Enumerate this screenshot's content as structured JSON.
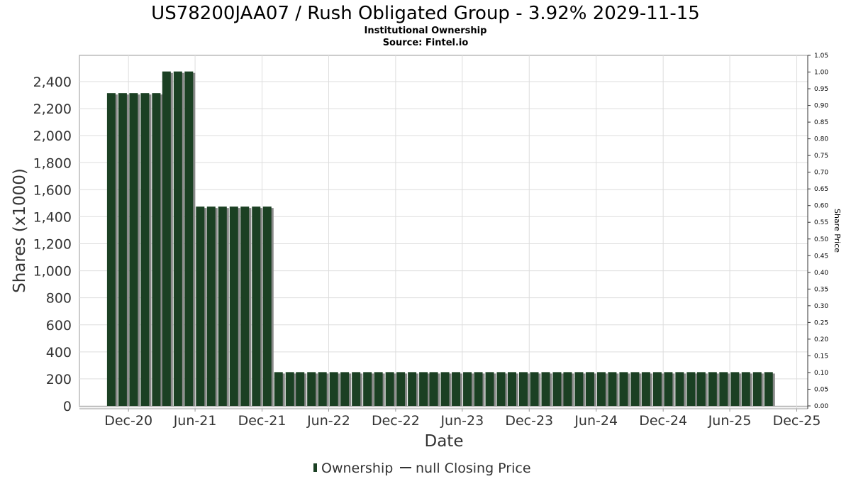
{
  "title": "US78200JAA07 / Rush Obligated Group - 3.92% 2029-11-15",
  "subtitle": "Institutional Ownership",
  "source": "Source: Fintel.io",
  "legend": {
    "ownership_label": "Ownership",
    "price_label": "null Closing Price"
  },
  "colors": {
    "bar": "#1b4023",
    "bar_shadow": "#8a8a8a",
    "grid": "#dddddd",
    "plot_border": "#999999"
  },
  "chart_data": {
    "type": "bar",
    "xlabel": "Date",
    "ylabel": "Shares (x1000)",
    "y2label": "Share Price",
    "ylim": [
      0,
      2600
    ],
    "y2lim": [
      0,
      1.05
    ],
    "yticks": [
      0,
      200,
      400,
      600,
      800,
      1000,
      1200,
      1400,
      1600,
      1800,
      2000,
      2200,
      2400
    ],
    "ytick_labels": [
      "0",
      "200",
      "400",
      "600",
      "800",
      "1,000",
      "1,200",
      "1,400",
      "1,600",
      "1,800",
      "2,000",
      "2,200",
      "2,400"
    ],
    "y2ticks": [
      0.0,
      0.05,
      0.1,
      0.15,
      0.2,
      0.25,
      0.3,
      0.35,
      0.4,
      0.45,
      0.5,
      0.55,
      0.6,
      0.65,
      0.7,
      0.75,
      0.8,
      0.85,
      0.9,
      0.95,
      1.0,
      1.05
    ],
    "y2tick_labels": [
      "0.00",
      "0.05",
      "0.10",
      "0.15",
      "0.20",
      "0.25",
      "0.30",
      "0.35",
      "0.40",
      "0.45",
      "0.50",
      "0.55",
      "0.60",
      "0.65",
      "0.70",
      "0.75",
      "0.80",
      "0.85",
      "0.90",
      "0.95",
      "1.00",
      "1.05"
    ],
    "xlim": [
      "2020-07-20",
      "2025-12-31"
    ],
    "xticks": [
      "2020-12-01",
      "2021-06-01",
      "2021-12-01",
      "2022-06-01",
      "2022-12-01",
      "2023-06-01",
      "2023-12-01",
      "2024-06-01",
      "2024-12-01",
      "2025-06-01",
      "2025-12-01"
    ],
    "xtick_labels": [
      "Dec-20",
      "Jun-21",
      "Dec-21",
      "Jun-22",
      "Dec-22",
      "Jun-23",
      "Dec-23",
      "Jun-24",
      "Dec-24",
      "Jun-25",
      "Dec-25"
    ],
    "grid": true,
    "legend_position": "bottom",
    "series": [
      {
        "name": "Ownership",
        "points": [
          {
            "date": "2020-10-15",
            "value": 2315
          },
          {
            "date": "2020-11-15",
            "value": 2315
          },
          {
            "date": "2020-12-15",
            "value": 2315
          },
          {
            "date": "2021-01-15",
            "value": 2315
          },
          {
            "date": "2021-02-15",
            "value": 2315
          },
          {
            "date": "2021-03-15",
            "value": 2475
          },
          {
            "date": "2021-04-15",
            "value": 2475
          },
          {
            "date": "2021-05-15",
            "value": 2475
          },
          {
            "date": "2021-06-15",
            "value": 1475
          },
          {
            "date": "2021-07-15",
            "value": 1475
          },
          {
            "date": "2021-08-15",
            "value": 1475
          },
          {
            "date": "2021-09-15",
            "value": 1475
          },
          {
            "date": "2021-10-15",
            "value": 1475
          },
          {
            "date": "2021-11-15",
            "value": 1475
          },
          {
            "date": "2021-12-15",
            "value": 1475
          },
          {
            "date": "2022-01-15",
            "value": 250
          },
          {
            "date": "2022-02-15",
            "value": 250
          },
          {
            "date": "2022-03-15",
            "value": 250
          },
          {
            "date": "2022-04-15",
            "value": 250
          },
          {
            "date": "2022-05-15",
            "value": 250
          },
          {
            "date": "2022-06-15",
            "value": 250
          },
          {
            "date": "2022-07-15",
            "value": 250
          },
          {
            "date": "2022-08-15",
            "value": 250
          },
          {
            "date": "2022-09-15",
            "value": 250
          },
          {
            "date": "2022-10-15",
            "value": 250
          },
          {
            "date": "2022-11-15",
            "value": 250
          },
          {
            "date": "2022-12-15",
            "value": 250
          },
          {
            "date": "2023-01-15",
            "value": 250
          },
          {
            "date": "2023-02-15",
            "value": 250
          },
          {
            "date": "2023-03-15",
            "value": 250
          },
          {
            "date": "2023-04-15",
            "value": 250
          },
          {
            "date": "2023-05-15",
            "value": 250
          },
          {
            "date": "2023-06-15",
            "value": 250
          },
          {
            "date": "2023-07-15",
            "value": 250
          },
          {
            "date": "2023-08-15",
            "value": 250
          },
          {
            "date": "2023-09-15",
            "value": 250
          },
          {
            "date": "2023-10-15",
            "value": 250
          },
          {
            "date": "2023-11-15",
            "value": 250
          },
          {
            "date": "2023-12-15",
            "value": 250
          },
          {
            "date": "2024-01-15",
            "value": 250
          },
          {
            "date": "2024-02-15",
            "value": 250
          },
          {
            "date": "2024-03-15",
            "value": 250
          },
          {
            "date": "2024-04-15",
            "value": 250
          },
          {
            "date": "2024-05-15",
            "value": 250
          },
          {
            "date": "2024-06-15",
            "value": 250
          },
          {
            "date": "2024-07-15",
            "value": 250
          },
          {
            "date": "2024-08-15",
            "value": 250
          },
          {
            "date": "2024-09-15",
            "value": 250
          },
          {
            "date": "2024-10-15",
            "value": 250
          },
          {
            "date": "2024-11-15",
            "value": 250
          },
          {
            "date": "2024-12-15",
            "value": 250
          },
          {
            "date": "2025-01-15",
            "value": 250
          },
          {
            "date": "2025-02-15",
            "value": 250
          },
          {
            "date": "2025-03-15",
            "value": 250
          },
          {
            "date": "2025-04-15",
            "value": 250
          },
          {
            "date": "2025-05-15",
            "value": 250
          },
          {
            "date": "2025-06-15",
            "value": 250
          },
          {
            "date": "2025-07-15",
            "value": 250
          },
          {
            "date": "2025-08-15",
            "value": 250
          },
          {
            "date": "2025-09-15",
            "value": 250
          }
        ]
      }
    ]
  }
}
